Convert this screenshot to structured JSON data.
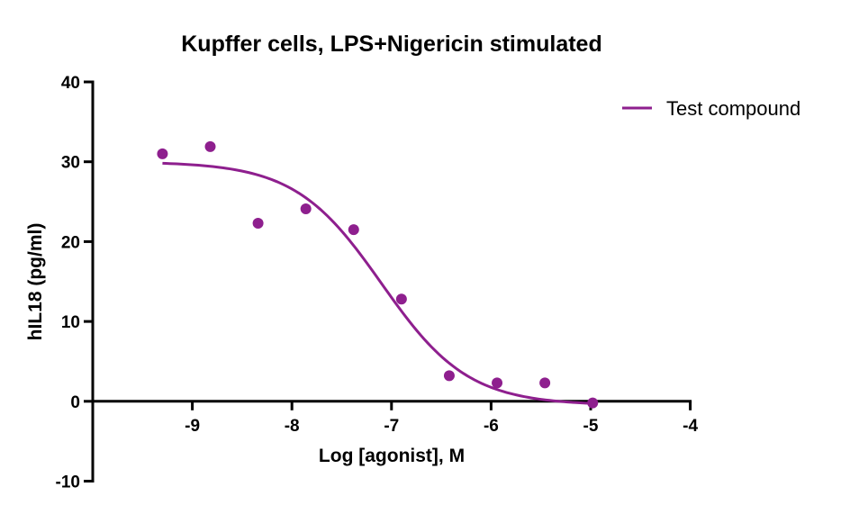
{
  "chart_data": {
    "type": "scatter",
    "title": "Kupffer cells, LPS+Nigericin stimulated",
    "xlabel": "Log [agonist], M",
    "ylabel": "hIL18 (pg/ml)",
    "xlim": [
      -10,
      -4
    ],
    "ylim": [
      -10,
      40
    ],
    "x_ticks": [
      -9,
      -8,
      -7,
      -6,
      -5,
      -4
    ],
    "x_tick_labels": [
      "-9",
      "-8",
      "-7",
      "-6",
      "-5",
      "-4"
    ],
    "y_ticks": [
      40,
      30,
      20,
      10,
      0,
      -10
    ],
    "y_tick_labels": [
      "40",
      "30",
      "20",
      "10",
      "0",
      "-10"
    ],
    "grid": false,
    "legend_position": "top-right",
    "series": [
      {
        "name": "Test compound",
        "color": "#8e1f8e",
        "points": [
          {
            "x": -9.3,
            "y": 31.0
          },
          {
            "x": -8.82,
            "y": 31.9
          },
          {
            "x": -8.34,
            "y": 22.3
          },
          {
            "x": -7.86,
            "y": 24.1
          },
          {
            "x": -7.38,
            "y": 21.5
          },
          {
            "x": -6.9,
            "y": 12.8
          },
          {
            "x": -6.42,
            "y": 3.2
          },
          {
            "x": -5.94,
            "y": 2.3
          },
          {
            "x": -5.46,
            "y": 2.3
          },
          {
            "x": -4.98,
            "y": -0.2
          }
        ],
        "fit": {
          "model": "four-parameter logistic",
          "top": 30.0,
          "bottom": -0.5,
          "logIC50": -7.1,
          "hill_slope": -1.0,
          "x_range": [
            -9.3,
            -4.98
          ]
        }
      }
    ]
  }
}
